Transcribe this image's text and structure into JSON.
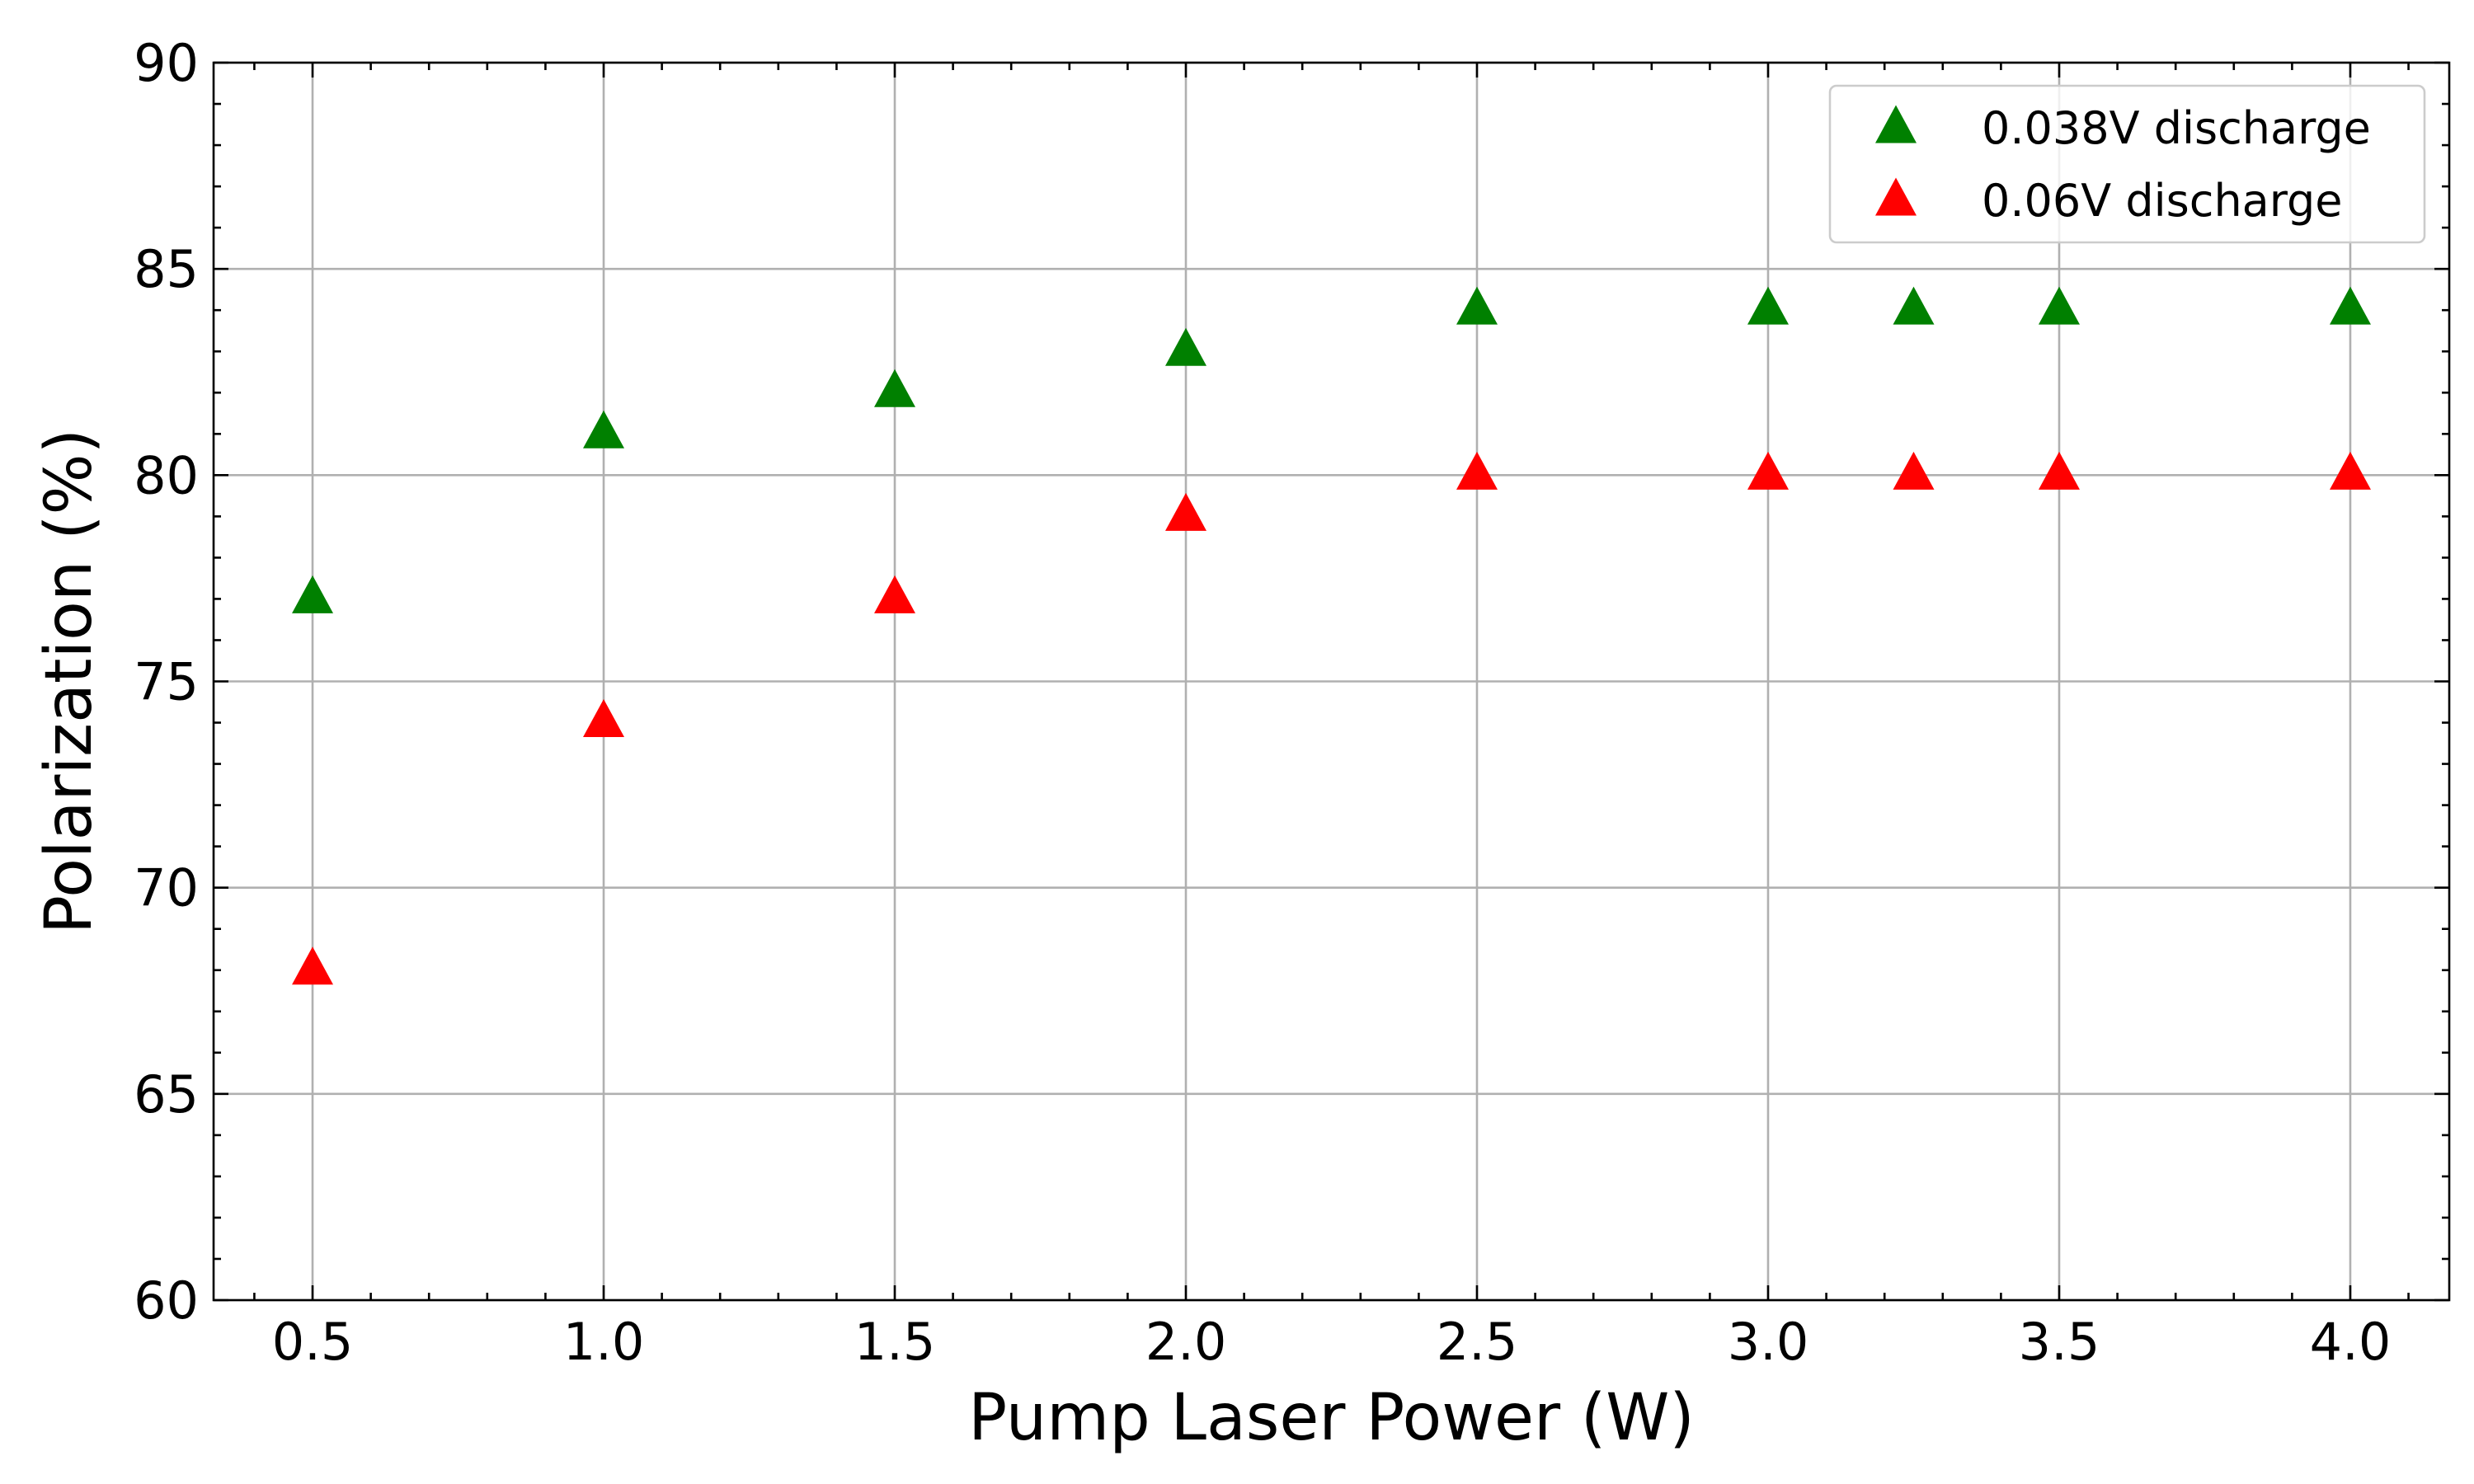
{
  "chart_data": {
    "type": "scatter",
    "title": "",
    "xlabel": "Pump Laser Power (W)",
    "ylabel": "Polarization (%)",
    "xlim": [
      0.33,
      4.17
    ],
    "ylim": [
      60,
      90
    ],
    "xticks": [
      0.5,
      1.0,
      1.5,
      2.0,
      2.5,
      3.0,
      3.5,
      4.0
    ],
    "xtick_labels": [
      "0.5",
      "1.0",
      "1.5",
      "2.0",
      "2.5",
      "3.0",
      "3.5",
      "4.0"
    ],
    "yticks": [
      60,
      65,
      70,
      75,
      80,
      85,
      90
    ],
    "ytick_labels": [
      "60",
      "65",
      "70",
      "75",
      "80",
      "85",
      "90"
    ],
    "x_minor_step": 0.1,
    "y_minor_step": 1,
    "grid": true,
    "legend_position": "top-right",
    "marker": "triangle-up",
    "series": [
      {
        "name": "0.038V discharge",
        "color": "#008000",
        "x": [
          0.5,
          1.0,
          1.5,
          2.0,
          2.5,
          3.0,
          3.25,
          3.5,
          4.0
        ],
        "y": [
          77,
          81,
          82,
          83,
          84,
          84,
          84,
          84,
          84
        ]
      },
      {
        "name": "0.06V discharge",
        "color": "#ff0000",
        "x": [
          0.5,
          1.0,
          1.5,
          2.0,
          2.5,
          3.0,
          3.25,
          3.5,
          4.0
        ],
        "y": [
          68,
          74,
          77,
          79,
          80,
          80,
          80,
          80,
          80
        ]
      }
    ]
  }
}
